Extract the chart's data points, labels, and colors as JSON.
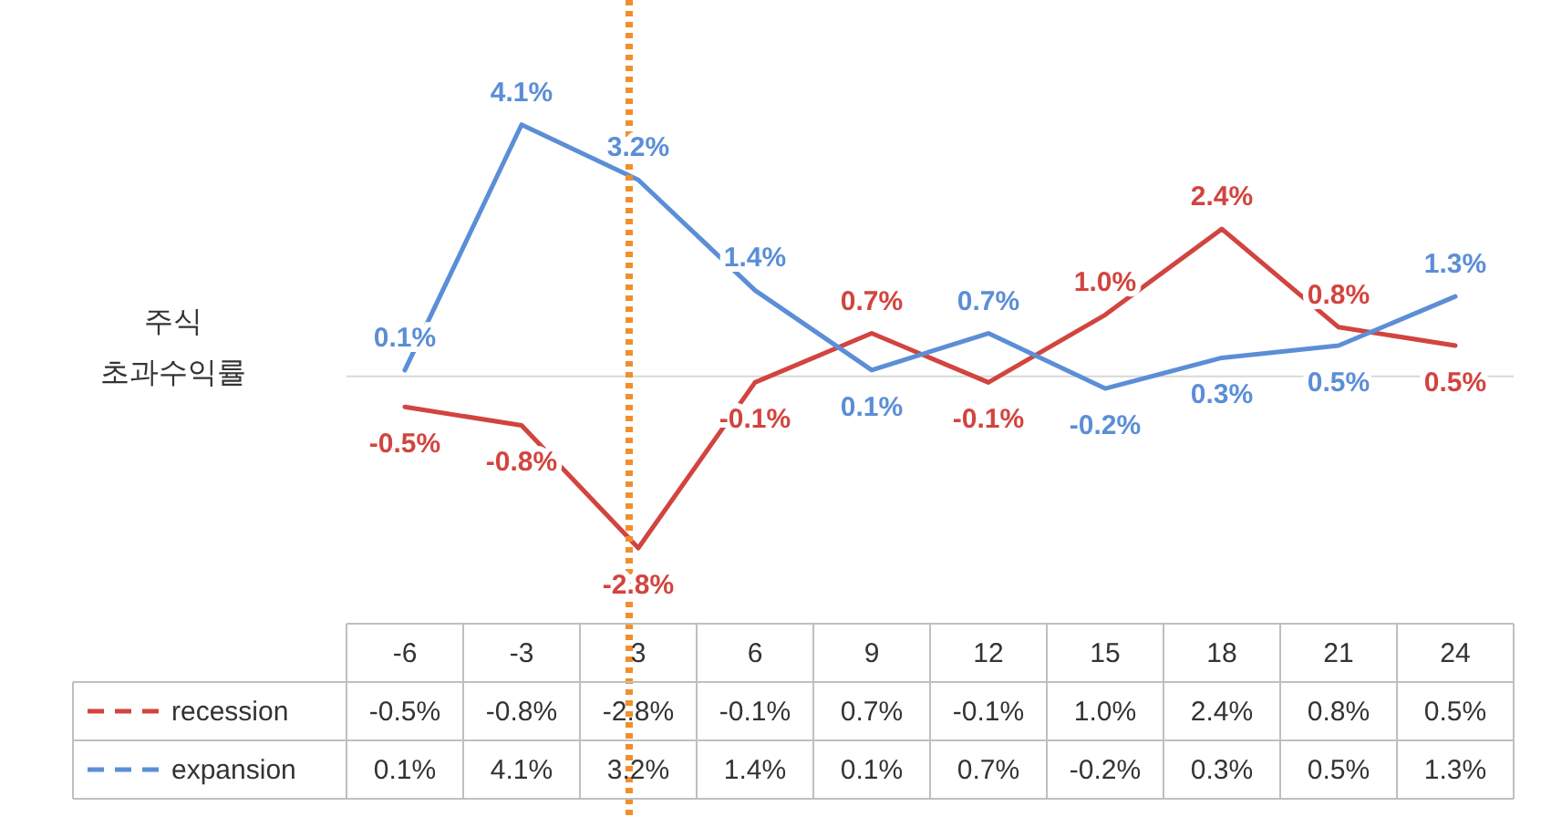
{
  "chart_data": {
    "type": "line",
    "ylabel": "주식 초과수익률",
    "categories": [
      "-6",
      "-3",
      "3",
      "6",
      "9",
      "12",
      "15",
      "18",
      "21",
      "24"
    ],
    "series": [
      {
        "name": "recession",
        "color": "#d2443f",
        "values": [
          -0.5,
          -0.8,
          -2.8,
          -0.1,
          0.7,
          -0.1,
          1.0,
          2.4,
          0.8,
          0.5
        ],
        "value_labels": [
          "-0.5%",
          "-0.8%",
          "-2.8%",
          "-0.1%",
          "0.7%",
          "-0.1%",
          "1.0%",
          "2.4%",
          "0.8%",
          "0.5%"
        ]
      },
      {
        "name": "expansion",
        "color": "#5b8ed6",
        "values": [
          0.1,
          4.1,
          3.2,
          1.4,
          0.1,
          0.7,
          -0.2,
          0.3,
          0.5,
          1.3
        ],
        "value_labels": [
          "0.1%",
          "4.1%",
          "3.2%",
          "1.4%",
          "0.1%",
          "0.7%",
          "-0.2%",
          "0.3%",
          "0.5%",
          "1.3%"
        ]
      }
    ],
    "ref_lines": [
      {
        "axis": "x",
        "value": "3",
        "color": "#f28e2b",
        "line_style": "dotted"
      }
    ],
    "legend": "bottom"
  }
}
